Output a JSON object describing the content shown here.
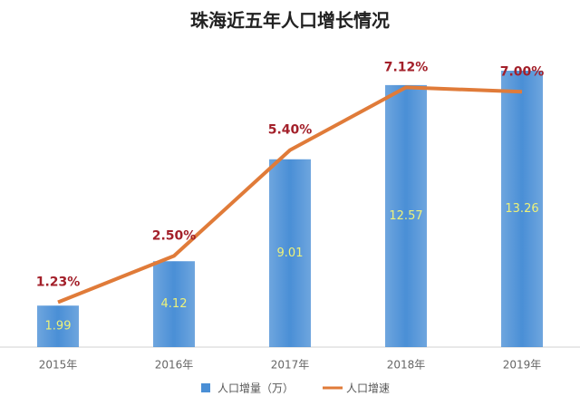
{
  "chart_data": {
    "type": "bar-line",
    "title": "珠海近五年人口增长情况",
    "categories": [
      "2015年",
      "2016年",
      "2017年",
      "2018年",
      "2019年"
    ],
    "series": [
      {
        "name": "人口增量（万）",
        "type": "bar",
        "color": "#4a8fd6",
        "values": [
          1.99,
          4.12,
          9.01,
          12.57,
          13.26
        ]
      },
      {
        "name": "人口增速",
        "type": "line",
        "axis": "y2",
        "color": "#e07b39",
        "values": [
          1.23,
          2.5,
          5.4,
          7.12,
          7
        ],
        "value_labels": [
          "1.23%",
          "2.50%",
          "5.40%",
          "7.12%",
          "7.00%"
        ]
      }
    ],
    "ylim": [
      0,
      14
    ],
    "y2lim": [
      0,
      8
    ],
    "legend": "bottom"
  }
}
